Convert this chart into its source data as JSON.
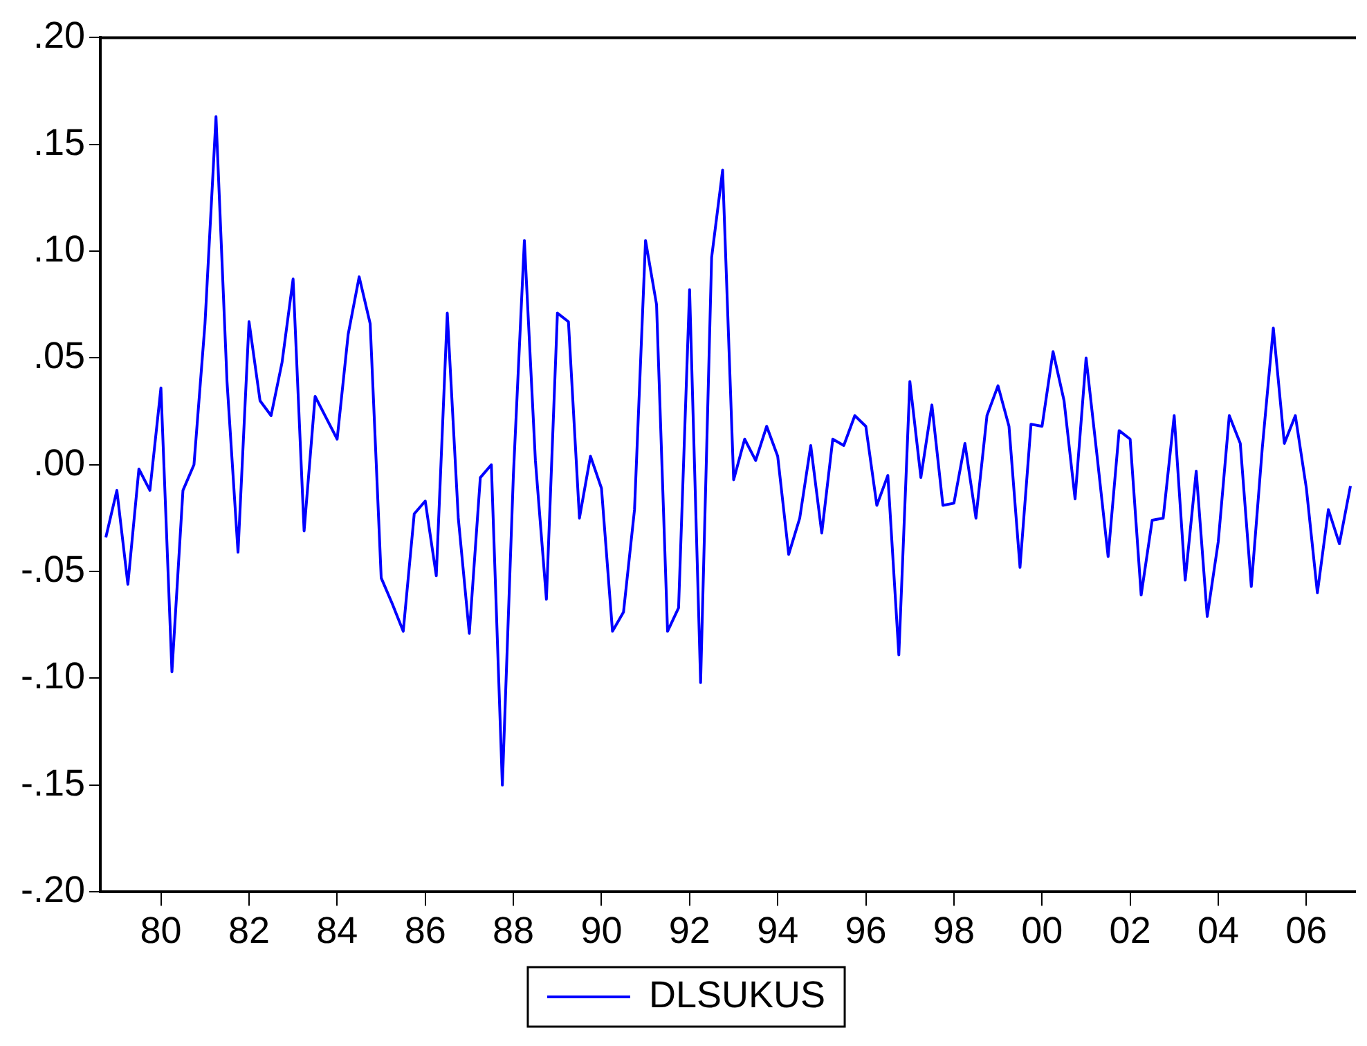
{
  "chart_data": {
    "type": "line",
    "legend": "bottom",
    "grid": false,
    "marker": "none",
    "line_style": "solid",
    "categories": [
      null,
      null,
      null,
      null,
      null,
      "80",
      null,
      null,
      null,
      null,
      null,
      null,
      null,
      "82",
      null,
      null,
      null,
      null,
      null,
      null,
      null,
      "84",
      null,
      null,
      null,
      null,
      null,
      null,
      null,
      "86",
      null,
      null,
      null,
      null,
      null,
      null,
      null,
      "88",
      null,
      null,
      null,
      null,
      null,
      null,
      null,
      "90",
      null,
      null,
      null,
      null,
      null,
      null,
      null,
      "92",
      null,
      null,
      null,
      null,
      null,
      null,
      null,
      "94",
      null,
      null,
      null,
      null,
      null,
      null,
      null,
      "96",
      null,
      null,
      null,
      null,
      null,
      null,
      null,
      "98",
      null,
      null,
      null,
      null,
      null,
      null,
      null,
      "00",
      null,
      null,
      null,
      null,
      null,
      null,
      null,
      "02",
      null,
      null,
      null,
      null,
      null,
      null,
      null,
      "04",
      null,
      null,
      null,
      null,
      null,
      null,
      null,
      "06",
      null,
      null,
      null,
      null
    ],
    "series": [
      {
        "name": "DLSUKUS",
        "color": "#0000ff",
        "values": [
          -0.034,
          -0.012,
          -0.056,
          -0.002,
          -0.012,
          0.036,
          -0.097,
          -0.012,
          0.0,
          0.066,
          0.163,
          0.039,
          -0.041,
          0.067,
          0.03,
          0.023,
          0.048,
          0.087,
          -0.031,
          0.032,
          0.022,
          0.012,
          0.061,
          0.088,
          0.066,
          -0.053,
          -0.065,
          -0.078,
          -0.023,
          -0.017,
          -0.052,
          0.071,
          -0.025,
          -0.079,
          -0.006,
          0.0,
          -0.15,
          -0.005,
          0.105,
          0.002,
          -0.063,
          0.071,
          0.067,
          -0.025,
          0.004,
          -0.011,
          -0.078,
          -0.069,
          -0.021,
          0.105,
          0.075,
          -0.078,
          -0.067,
          0.082,
          -0.102,
          0.097,
          0.138,
          -0.007,
          0.012,
          0.002,
          0.018,
          0.004,
          -0.042,
          -0.025,
          0.009,
          -0.032,
          0.012,
          0.009,
          0.023,
          0.018,
          -0.019,
          -0.005,
          -0.089,
          0.039,
          -0.006,
          0.028,
          -0.019,
          -0.018,
          0.01,
          -0.025,
          0.023,
          0.037,
          0.018,
          -0.048,
          0.019,
          0.018,
          0.053,
          0.03,
          -0.016,
          0.05,
          0.004,
          -0.043,
          0.016,
          0.012,
          -0.061,
          -0.026,
          -0.025,
          0.023,
          -0.054,
          -0.003,
          -0.071,
          -0.036,
          0.023,
          0.01,
          -0.057,
          0.008,
          0.064,
          0.01,
          0.023,
          -0.011,
          -0.06,
          -0.021,
          -0.037,
          -0.01
        ]
      }
    ],
    "ylim": [
      -0.2,
      0.2
    ],
    "yticks": [
      {
        "value": -0.2,
        "label": "-.20"
      },
      {
        "value": -0.15,
        "label": "-.15"
      },
      {
        "value": -0.1,
        "label": "-.10"
      },
      {
        "value": -0.05,
        "label": "-.05"
      },
      {
        "value": 0,
        "label": ".00"
      },
      {
        "value": 0.05,
        "label": ".05"
      },
      {
        "value": 0.1,
        "label": ".10"
      },
      {
        "value": 0.15,
        "label": ".15"
      },
      {
        "value": 0.2,
        "label": ".20"
      }
    ]
  }
}
